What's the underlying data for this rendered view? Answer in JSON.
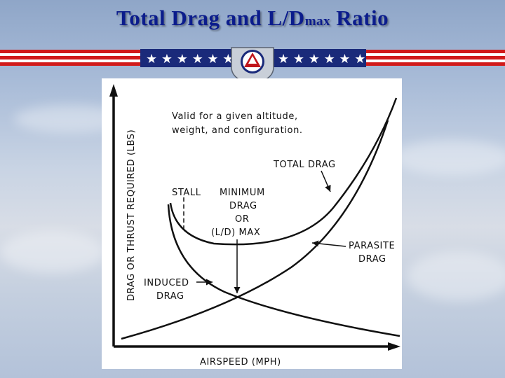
{
  "slide": {
    "title_main": "Total  Drag and L/D",
    "title_sub": "max",
    "title_end": " Ratio",
    "colors": {
      "title": "#0b1c8c",
      "stripe_red": "#d11a1a",
      "banner_blue": "#1a2a7a",
      "emblem_red": "#c0161c"
    }
  },
  "diagram": {
    "y_axis_label": "DRAG OR THRUST REQUIRED  (LBS)",
    "x_axis_label": "AIRSPEED  (MPH)",
    "note_line1": "Valid for a given altitude,",
    "note_line2": "weight,  and configuration.",
    "total_drag": "TOTAL  DRAG",
    "stall": "STALL",
    "min_line1": "MINIMUM",
    "min_line2": "DRAG",
    "min_line3": "OR",
    "min_line4": "(L/D) MAX",
    "parasite_line1": "PARASITE",
    "parasite_line2": "DRAG",
    "induced_line1": "INDUCED",
    "induced_line2": "DRAG"
  }
}
